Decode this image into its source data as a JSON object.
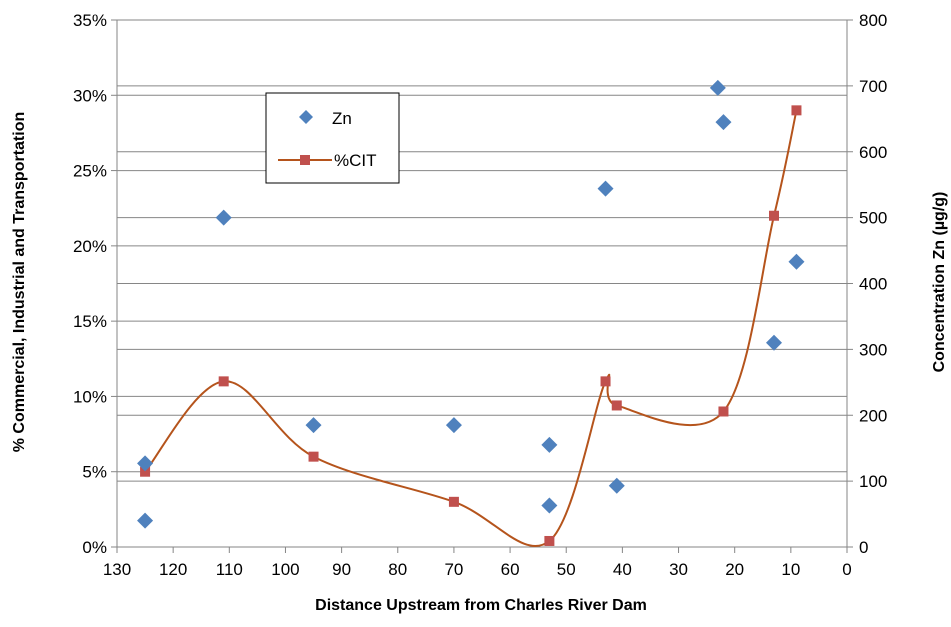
{
  "chart_data": {
    "type": "scatter",
    "title": "",
    "xlabel": "Distance Upstream from Charles River Dam",
    "ylabel_left": "% Commercial, Industrial and Transportation",
    "ylabel_right": "Concentration Zn (µg/g)",
    "x_reversed": true,
    "xlim": [
      130,
      0
    ],
    "x_ticks": [
      "130",
      "120",
      "110",
      "100",
      "90",
      "80",
      "70",
      "60",
      "50",
      "40",
      "30",
      "20",
      "10",
      "0"
    ],
    "x_tick_values": [
      130,
      120,
      110,
      100,
      90,
      80,
      70,
      60,
      50,
      40,
      30,
      20,
      10,
      0
    ],
    "ylim_left": [
      0,
      35
    ],
    "y_left_ticks": [
      "0%",
      "5%",
      "10%",
      "15%",
      "20%",
      "25%",
      "30%",
      "35%"
    ],
    "y_left_tick_values": [
      0,
      5,
      10,
      15,
      20,
      25,
      30,
      35
    ],
    "ylim_right": [
      0,
      800
    ],
    "y_right_ticks": [
      "0",
      "100",
      "200",
      "300",
      "400",
      "500",
      "600",
      "700",
      "800"
    ],
    "y_right_tick_values": [
      0,
      100,
      200,
      300,
      400,
      500,
      600,
      700,
      800
    ],
    "grid": "horizontal",
    "legend_position": "upper-left inside plot",
    "series": [
      {
        "name": "Zn",
        "axis": "right",
        "marker": "diamond",
        "color": "#4f81bd",
        "x": [
          125,
          125,
          111,
          95,
          70,
          53,
          53,
          43,
          41,
          23,
          22,
          13,
          9
        ],
        "y": [
          40,
          127,
          500,
          185,
          185,
          155,
          63,
          544,
          93,
          697,
          645,
          310,
          433
        ]
      },
      {
        "name": "%CIT",
        "axis": "left",
        "marker": "square",
        "line": "smooth",
        "color": "#c0504d",
        "line_color": "#b5541c",
        "x": [
          125,
          111,
          95,
          70,
          53,
          43,
          41,
          22,
          13,
          9
        ],
        "y": [
          5.0,
          11.0,
          6.0,
          3.0,
          0.4,
          11.0,
          9.4,
          9.0,
          22.0,
          29.0
        ]
      }
    ]
  }
}
